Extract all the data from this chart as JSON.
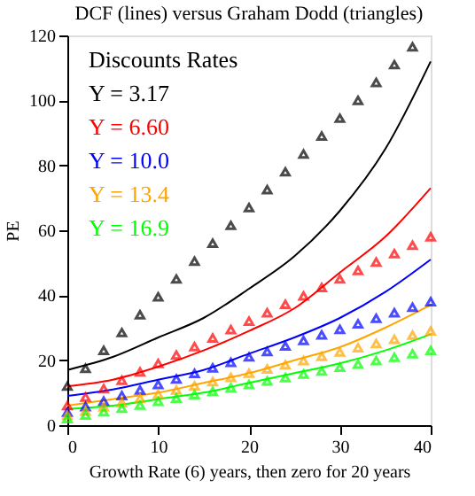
{
  "chart_data": {
    "type": "line",
    "title": "DCF (lines) versus Graham Dodd (triangles)",
    "xlabel": "Growth Rate (6) years, then zero for 20 years",
    "ylabel": "PE",
    "legend_title": "Discounts Rates",
    "legend": "top left",
    "grid": false,
    "xlim": [
      0,
      40
    ],
    "xticks": [
      0,
      10,
      20,
      30,
      40
    ],
    "ylim": [
      0,
      120
    ],
    "yticks": [
      0,
      20,
      40,
      60,
      80,
      100,
      120
    ],
    "series": [
      {
        "name": "Y =  3.17",
        "color": "#000000",
        "x": [
          0,
          5,
          10,
          15,
          20,
          25,
          30,
          35,
          40
        ],
        "values": [
          17,
          21,
          27,
          33,
          42,
          52,
          66,
          85,
          112
        ]
      },
      {
        "name": "Y =  6.60",
        "color": "#ff0000",
        "x": [
          0,
          5,
          10,
          15,
          20,
          25,
          30,
          35,
          40
        ],
        "values": [
          12,
          14,
          18,
          23,
          29,
          36,
          47,
          58,
          73
        ]
      },
      {
        "name": "Y =  10.0",
        "color": "#0000ff",
        "x": [
          0,
          5,
          10,
          15,
          20,
          25,
          30,
          35,
          40
        ],
        "values": [
          9,
          11,
          14,
          17,
          22,
          27,
          33,
          41,
          51
        ]
      },
      {
        "name": "Y =  13.4",
        "color": "#ffa500",
        "x": [
          0,
          5,
          10,
          15,
          20,
          25,
          30,
          35,
          40
        ],
        "values": [
          6,
          8,
          10,
          13,
          16,
          20,
          24,
          30,
          37
        ]
      },
      {
        "name": "Y =  16.9",
        "color": "#00ff00",
        "x": [
          0,
          5,
          10,
          15,
          20,
          25,
          30,
          35,
          40
        ],
        "values": [
          5,
          6,
          8,
          10,
          13,
          16,
          19,
          23,
          28
        ]
      },
      {
        "type": "scatter",
        "marker": "triangle",
        "color": "#000000",
        "x": [
          0,
          2,
          4,
          6,
          8,
          10,
          12,
          14,
          16,
          18,
          20,
          22,
          24,
          26,
          28,
          30,
          32,
          34,
          36,
          38
        ],
        "values": [
          12,
          17.5,
          23,
          28.5,
          34,
          39.5,
          45,
          50.5,
          56,
          61.5,
          67,
          72.5,
          78,
          83.5,
          89,
          94.5,
          100,
          105.5,
          111,
          116.5
        ]
      },
      {
        "type": "scatter",
        "marker": "triangle",
        "color": "#ff0000",
        "x": [
          0,
          2,
          4,
          6,
          8,
          10,
          12,
          14,
          16,
          18,
          20,
          22,
          24,
          26,
          28,
          30,
          32,
          34,
          36,
          38,
          40
        ],
        "values": [
          6,
          8.6,
          11.2,
          13.8,
          16.4,
          19,
          21.6,
          24.2,
          26.8,
          29.4,
          32,
          34.6,
          37.2,
          39.8,
          42.4,
          45,
          47.6,
          50.2,
          52.8,
          55.4,
          58
        ]
      },
      {
        "type": "scatter",
        "marker": "triangle",
        "color": "#0000ff",
        "x": [
          0,
          2,
          4,
          6,
          8,
          10,
          12,
          14,
          16,
          18,
          20,
          22,
          24,
          26,
          28,
          30,
          32,
          34,
          36,
          38,
          40
        ],
        "values": [
          4,
          5.7,
          7.4,
          9.1,
          10.8,
          12.5,
          14.2,
          15.9,
          17.6,
          19.3,
          21,
          22.7,
          24.4,
          26.1,
          27.8,
          29.5,
          31.2,
          32.9,
          34.6,
          36.3,
          38
        ]
      },
      {
        "type": "scatter",
        "marker": "triangle",
        "color": "#ffa500",
        "x": [
          0,
          2,
          4,
          6,
          8,
          10,
          12,
          14,
          16,
          18,
          20,
          22,
          24,
          26,
          28,
          30,
          32,
          34,
          36,
          38,
          40
        ],
        "values": [
          3,
          4.3,
          5.6,
          6.9,
          8.2,
          9.5,
          10.8,
          12.1,
          13.4,
          14.7,
          16,
          17.3,
          18.6,
          19.9,
          21.2,
          22.5,
          23.8,
          25.1,
          26.4,
          27.7,
          29
        ]
      },
      {
        "type": "scatter",
        "marker": "triangle",
        "color": "#00ff00",
        "x": [
          0,
          2,
          4,
          6,
          8,
          10,
          12,
          14,
          16,
          18,
          20,
          22,
          24,
          26,
          28,
          30,
          32,
          34,
          36,
          38,
          40
        ],
        "values": [
          2,
          3.1,
          4.1,
          5.2,
          6.2,
          7.3,
          8.3,
          9.4,
          10.4,
          11.5,
          12.5,
          13.6,
          14.6,
          15.7,
          16.7,
          17.8,
          18.8,
          19.9,
          20.9,
          22,
          23
        ]
      }
    ]
  }
}
